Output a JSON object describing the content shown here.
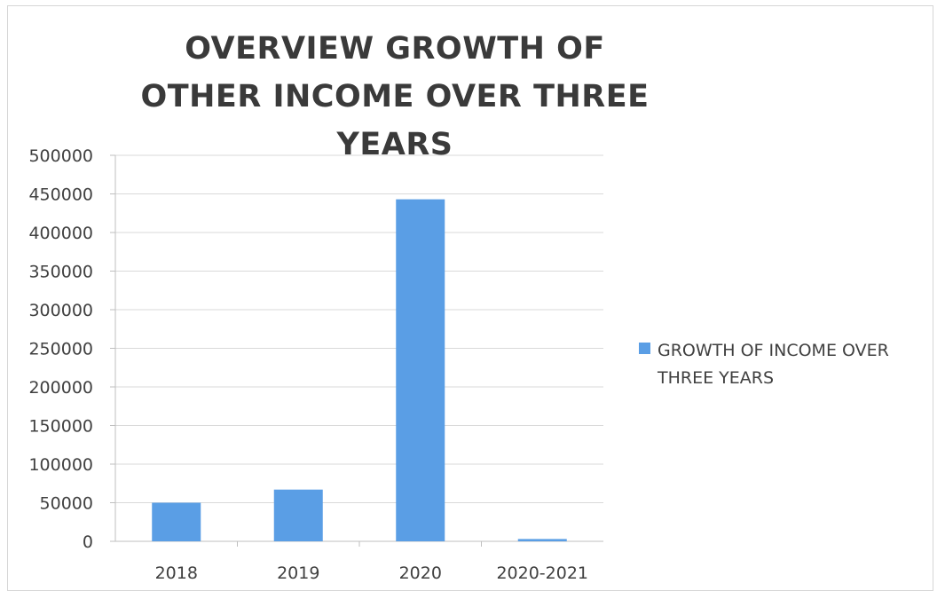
{
  "chart_data": {
    "type": "bar",
    "title": "OVERVIEW  GROWTH OF  OTHER INCOME OVER THREE YEARS",
    "categories": [
      "2018",
      "2019",
      "2020",
      "2020-2021"
    ],
    "series": [
      {
        "name": "GROWTH OF INCOME OVER THREE YEARS",
        "values": [
          50000,
          67000,
          443000,
          3000
        ],
        "color": "#5a9ee5"
      }
    ],
    "ylim": [
      0,
      500000
    ],
    "yticks": [
      "0",
      "50000",
      "100000",
      "150000",
      "200000",
      "250000",
      "300000",
      "350000",
      "400000",
      "450000",
      "500000"
    ],
    "grid": true,
    "legend_position": "right"
  },
  "colors": {
    "bar": "#5a9ee5",
    "grid": "#d9d9d9",
    "axis": "#bfbfbf",
    "text": "#404040"
  }
}
